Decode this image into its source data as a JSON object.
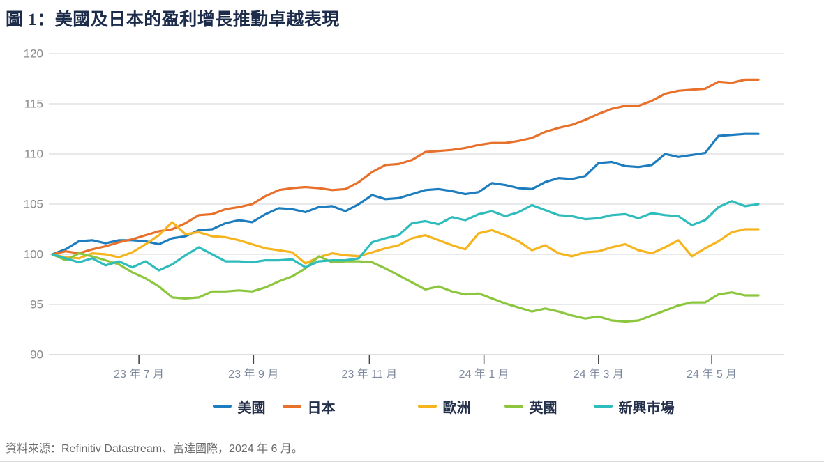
{
  "page": {
    "title": "圖 1：美國及日本的盈利增長推動卓越表現",
    "source": "資料來源：Refinitiv Datastream、富達國際，2024 年 6 月。"
  },
  "colors": {
    "title_text": "#1c2c4a",
    "legend_text": "#24304a",
    "y_axis_text": "#8a8a8a",
    "x_axis_text": "#7c889c",
    "gridline": "#dcdcdc",
    "axis_line": "#c6cad1",
    "tick_mark": "#454545",
    "source_text": "#6a6a6a"
  },
  "chart_data": {
    "type": "line",
    "title": "圖 1：美國及日本的盈利增長推動卓越表現",
    "xlabel": "",
    "ylabel": "",
    "ylim": [
      90,
      120
    ],
    "y_ticks": [
      90,
      95,
      100,
      105,
      110,
      115,
      120
    ],
    "grid": "horizontal",
    "legend_position": "bottom",
    "x_unit": "weeks from 2023-05 to 2024-05",
    "x_range_weeks": [
      0,
      53
    ],
    "x_ticks": [
      {
        "label": "23 年 7 月",
        "week": 6.5
      },
      {
        "label": "23 年 9 月",
        "week": 15.1
      },
      {
        "label": "23 年 11 月",
        "week": 23.8
      },
      {
        "label": "24 年 1 月",
        "week": 32.4
      },
      {
        "label": "24 年 3 月",
        "week": 41.0
      },
      {
        "label": "24 年 5 月",
        "week": 49.5
      }
    ],
    "series": [
      {
        "id": "us",
        "name": "美國",
        "color": "#1e7dbe",
        "values": [
          100,
          100.5,
          101.3,
          101.4,
          101.1,
          101.4,
          101.4,
          101.3,
          101,
          101.6,
          101.8,
          102.4,
          102.5,
          103.1,
          103.4,
          103.2,
          104,
          104.6,
          104.5,
          104.2,
          104.7,
          104.8,
          104.3,
          105,
          105.9,
          105.5,
          105.6,
          106,
          106.4,
          106.5,
          106.3,
          106,
          106.2,
          107.1,
          106.9,
          106.6,
          106.5,
          107.2,
          107.6,
          107.5,
          107.8,
          109.1,
          109.2,
          108.8,
          108.7,
          108.9,
          110,
          109.7,
          109.9,
          110.1,
          111.8,
          111.9,
          112,
          112
        ]
      },
      {
        "id": "japan",
        "name": "日本",
        "color": "#e7702b",
        "values": [
          100,
          100.3,
          100.1,
          100.5,
          100.8,
          101.2,
          101.5,
          101.9,
          102.3,
          102.5,
          103.1,
          103.9,
          104,
          104.5,
          104.7,
          105,
          105.8,
          106.4,
          106.6,
          106.7,
          106.6,
          106.4,
          106.5,
          107.2,
          108.2,
          108.9,
          109,
          109.4,
          110.2,
          110.3,
          110.4,
          110.6,
          110.9,
          111.1,
          111.1,
          111.3,
          111.6,
          112.2,
          112.6,
          112.9,
          113.4,
          114,
          114.5,
          114.8,
          114.8,
          115.3,
          116,
          116.3,
          116.4,
          116.5,
          117.2,
          117.1,
          117.4,
          117.4
        ]
      },
      {
        "id": "europe",
        "name": "歐洲",
        "color": "#f6b41e",
        "values": [
          100,
          99.7,
          99.6,
          100.1,
          100,
          99.7,
          100.2,
          101,
          101.9,
          103.2,
          102,
          102.2,
          101.8,
          101.7,
          101.4,
          101,
          100.6,
          100.4,
          100.2,
          99.1,
          99.7,
          100.1,
          99.9,
          99.8,
          100.2,
          100.6,
          100.9,
          101.6,
          101.9,
          101.4,
          100.9,
          100.5,
          102.1,
          102.4,
          101.9,
          101.3,
          100.4,
          100.9,
          100.1,
          99.8,
          100.2,
          100.3,
          100.7,
          101,
          100.4,
          100.1,
          100.7,
          101.4,
          99.8,
          100.6,
          101.3,
          102.2,
          102.5,
          102.5
        ]
      },
      {
        "id": "uk",
        "name": "英國",
        "color": "#8cc63e",
        "values": [
          100,
          99.4,
          100.1,
          99.8,
          99.4,
          99,
          98.2,
          97.6,
          96.8,
          95.7,
          95.6,
          95.7,
          96.3,
          96.3,
          96.4,
          96.3,
          96.7,
          97.3,
          97.8,
          98.6,
          99.8,
          99.2,
          99.3,
          99.3,
          99.2,
          98.6,
          97.9,
          97.2,
          96.5,
          96.8,
          96.3,
          96,
          96.1,
          95.6,
          95.1,
          94.7,
          94.3,
          94.6,
          94.3,
          93.9,
          93.6,
          93.8,
          93.4,
          93.3,
          93.4,
          93.9,
          94.4,
          94.9,
          95.2,
          95.2,
          96,
          96.2,
          95.9,
          95.9
        ]
      },
      {
        "id": "emerging-markets",
        "name": "新興市場",
        "color": "#2fbcbc",
        "values": [
          100,
          99.6,
          99.2,
          99.6,
          98.9,
          99.3,
          98.7,
          99.3,
          98.4,
          99,
          99.9,
          100.7,
          100,
          99.3,
          99.3,
          99.2,
          99.4,
          99.4,
          99.5,
          98.7,
          99.3,
          99.4,
          99.4,
          99.6,
          101.2,
          101.6,
          101.9,
          103.1,
          103.3,
          103,
          103.7,
          103.4,
          104,
          104.3,
          103.8,
          104.2,
          104.9,
          104.4,
          103.9,
          103.8,
          103.5,
          103.6,
          103.9,
          104,
          103.6,
          104.1,
          103.9,
          103.8,
          102.9,
          103.4,
          104.7,
          105.3,
          104.8,
          105
        ]
      }
    ]
  }
}
